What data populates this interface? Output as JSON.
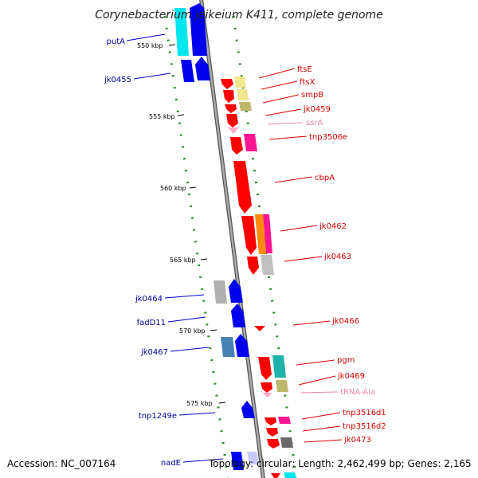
{
  "title": "Corynebacterium jeikeium K411, complete genome",
  "footer": {
    "accession": "Accession: NC_007164",
    "topology": "Topology: circular; Length: 2,462,499 bp; Genes: 2,165"
  },
  "ticks": [
    "550 kbp",
    "555 kbp",
    "560 kbp",
    "565 kbp",
    "570 kbp",
    "575 kbp"
  ],
  "colors": {
    "backbone": "#888888",
    "dots": "#228b22",
    "left_label": "#00009a",
    "right_label": "#d40000",
    "rna_label": "#ee88aa"
  },
  "left_genes": [
    {
      "label": "putA",
      "color": "#00e5ee"
    },
    {
      "label": "jk0455",
      "color": "#0000ee"
    },
    {
      "label": "jk0464",
      "color": "#b0b0b0"
    },
    {
      "label": "fadD11",
      "color": "#0000ee"
    },
    {
      "label": "jk0467",
      "color": "#4682b4"
    },
    {
      "label": "tnp1249e",
      "color": "#0000ee"
    },
    {
      "label": "nadE",
      "color": "#0000ee"
    }
  ],
  "right_genes": [
    {
      "label": "ftsE",
      "color": "#ff0000"
    },
    {
      "label": "ftsX",
      "color": "#f0e68c"
    },
    {
      "label": "smpB",
      "color": "#bdb76b"
    },
    {
      "label": "jk0459",
      "color": "#ff0000"
    },
    {
      "label": "ssrA",
      "color": "#ffaacc"
    },
    {
      "label": "tnp3506e",
      "color": "#ff1493"
    },
    {
      "label": "cbpA",
      "color": "#ff0000"
    },
    {
      "label": "jk0462",
      "color": "#ff8c00"
    },
    {
      "label": "jk0463",
      "color": "#c0c0c0"
    },
    {
      "label": "jk0466",
      "color": "#ff0000"
    },
    {
      "label": "pgm",
      "color": "#20b2aa"
    },
    {
      "label": "jk0469",
      "color": "#bdb76b"
    },
    {
      "label": "tRNA-Ala",
      "color": "#ffaacc"
    },
    {
      "label": "tnp3516d1",
      "color": "#ff1493"
    },
    {
      "label": "tnp3516d2",
      "color": "#ff0000"
    },
    {
      "label": "jk0473",
      "color": "#696969"
    }
  ]
}
